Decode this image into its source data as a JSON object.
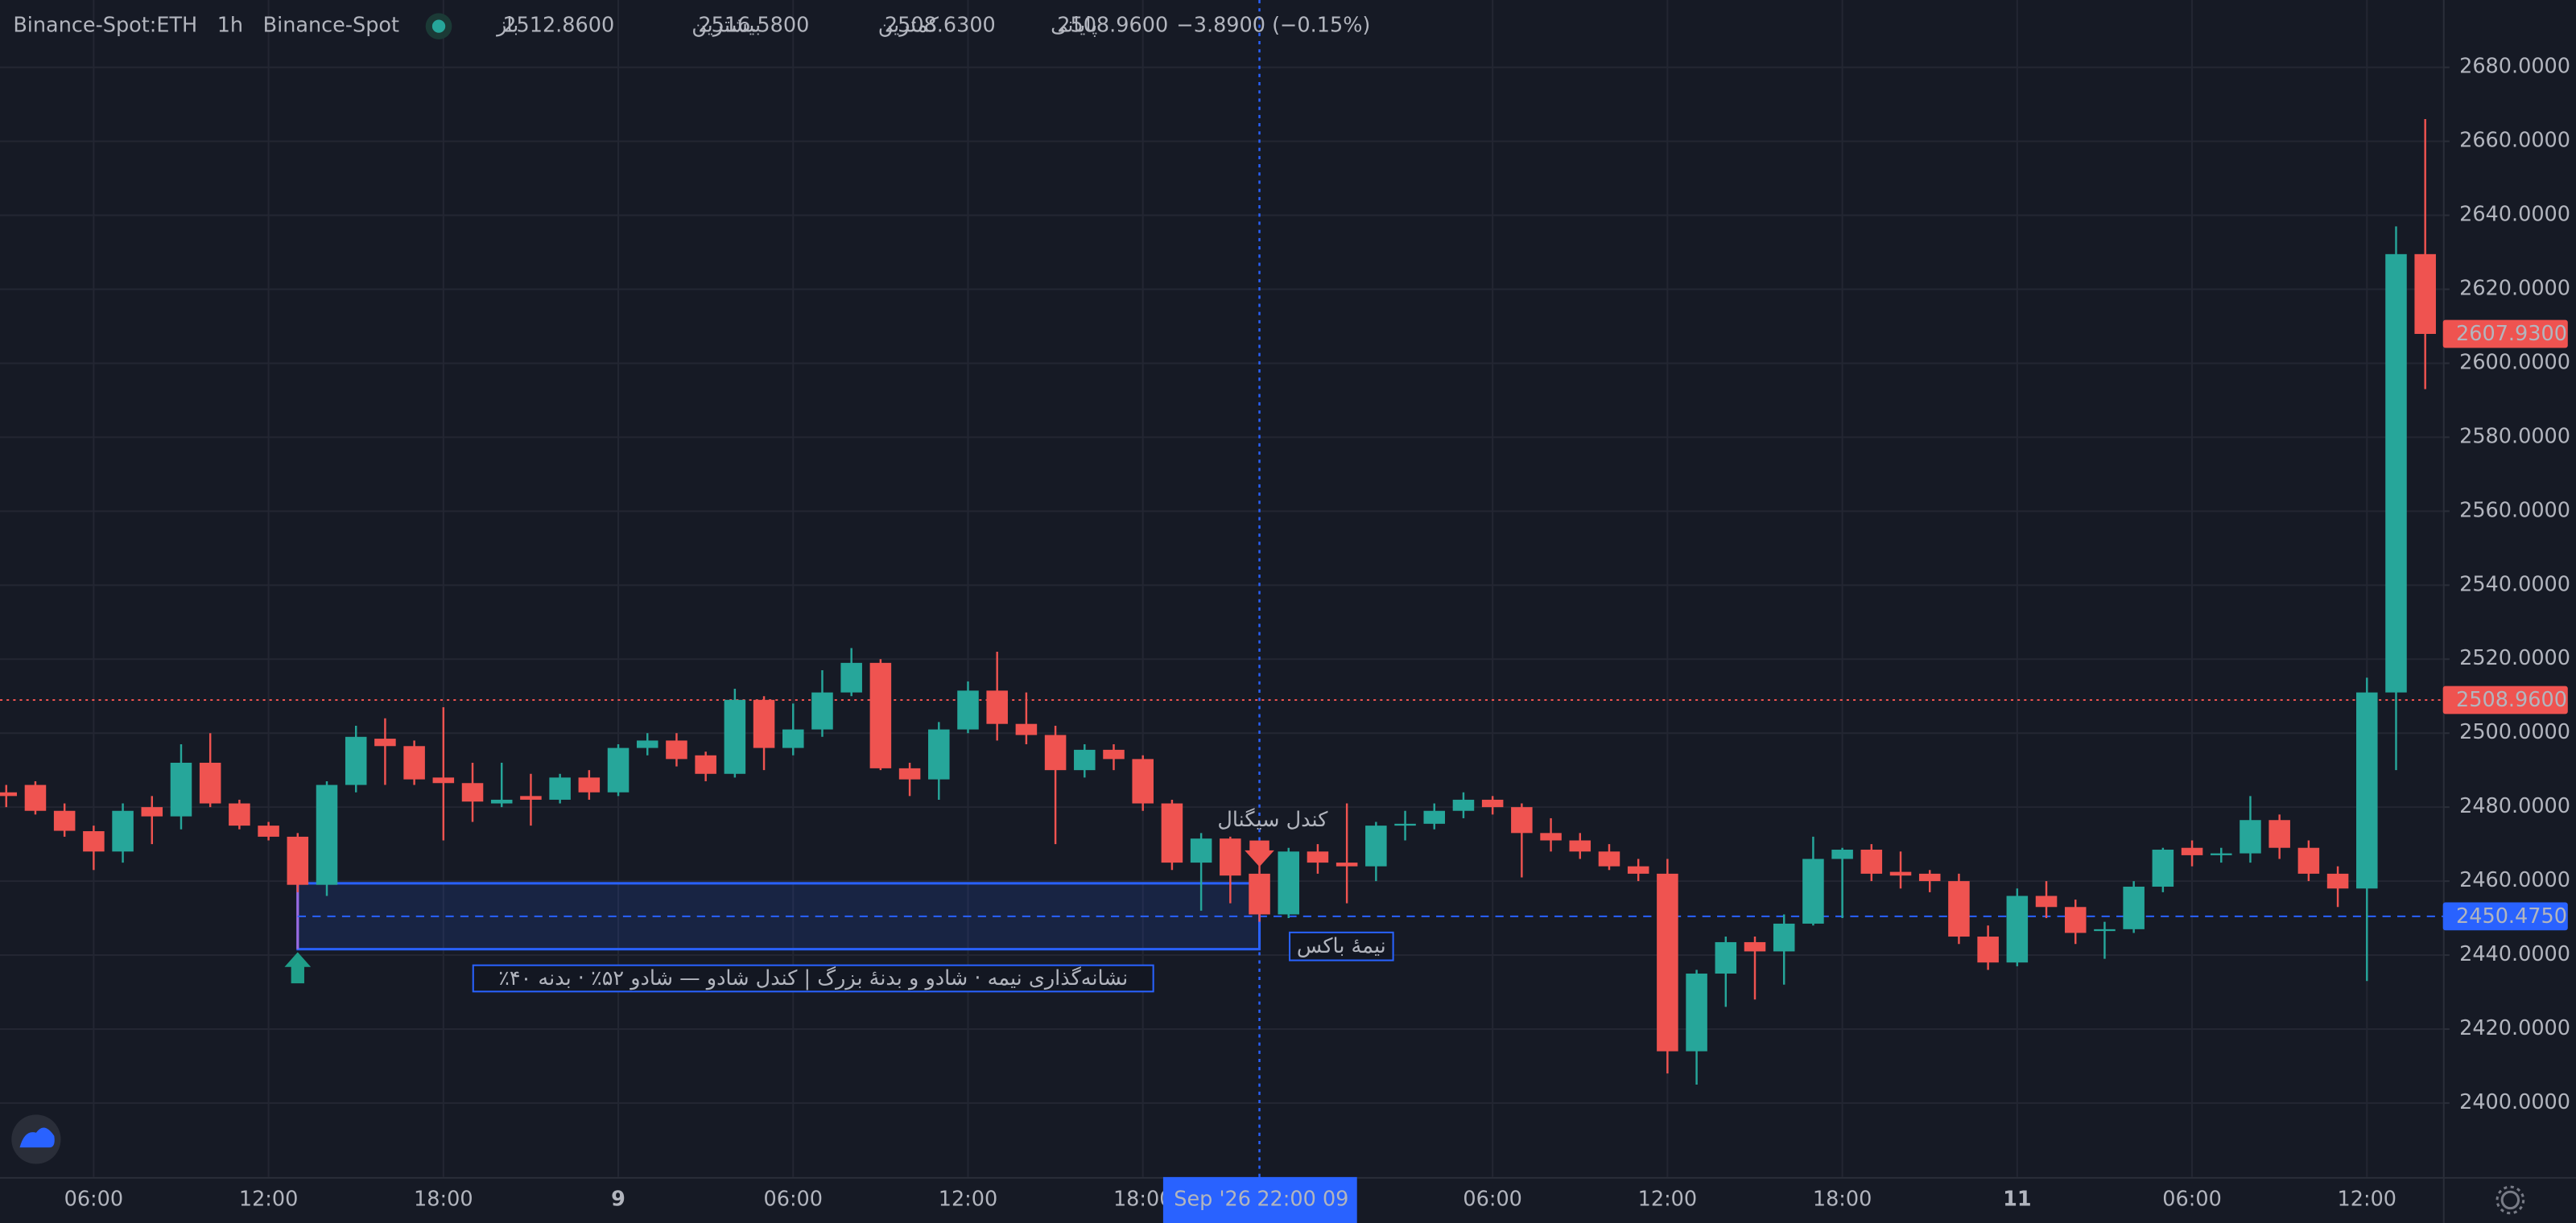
{
  "chart_data": {
    "type": "candlestick",
    "symbol": "Binance-Spot:ETH",
    "interval": "1h",
    "exchange": "Binance-Spot",
    "legend": [
      {
        "label": "باز",
        "value": "2512.8600"
      },
      {
        "label": "بیشترین",
        "value": "2516.5800"
      },
      {
        "label": "کمترین",
        "value": "2508.6300"
      },
      {
        "label": "پایانی",
        "value": "2508.9600"
      }
    ],
    "change": "−3.8900 (−0.15%)",
    "categories": [
      null,
      null,
      null,
      "06:00",
      null,
      null,
      null,
      null,
      null,
      "12:00",
      null,
      null,
      null,
      null,
      null,
      "18:00",
      null,
      null,
      null,
      null,
      null,
      "9",
      null,
      null,
      null,
      null,
      null,
      "06:00",
      null,
      null,
      null,
      null,
      null,
      "12:00",
      null,
      null,
      null,
      null,
      null,
      "18:00",
      null,
      null,
      null,
      null,
      null,
      null,
      null,
      null,
      null,
      null,
      null,
      "06:00",
      null,
      null,
      null,
      null,
      null,
      "12:00",
      null,
      null,
      null,
      null,
      null,
      "18:00",
      null,
      null,
      null,
      null,
      null,
      "11",
      null,
      null,
      null,
      null,
      null,
      "06:00",
      null,
      null,
      null,
      null,
      null,
      "12:00",
      null,
      null
    ],
    "open": [
      2484,
      2486,
      2479,
      2473.5,
      2468,
      2480,
      2477.5,
      2492,
      2481,
      2475,
      2472,
      2459,
      2486,
      2498.5,
      2496.5,
      2488,
      2486.5,
      2481,
      2483,
      2482,
      2488,
      2484,
      2496,
      2498,
      2494,
      2489,
      2509,
      2496,
      2501,
      2511,
      2519,
      2490.5,
      2487.5,
      2501,
      2511.5,
      2502.5,
      2499.5,
      2490,
      2495.5,
      2493,
      2481,
      2465,
      2471.5,
      2462,
      2451,
      2468,
      2465,
      2464,
      2475,
      2475.5,
      2479,
      2482,
      2480,
      2473,
      2471,
      2468,
      2464,
      2462,
      2414,
      2435,
      2443.5,
      2441,
      2448.5,
      2466,
      2468.5,
      2462.5,
      2462,
      2460,
      2445,
      2438,
      2456,
      2453,
      2446.5,
      2447,
      2458.5,
      2469,
      2467,
      2467.5,
      2476.5,
      2469,
      2462,
      2458,
      2511,
      2629.5
    ],
    "high": [
      2486,
      2487,
      2481,
      2475,
      2481,
      2483,
      2497,
      2500,
      2482,
      2476,
      2473,
      2487,
      2502,
      2504,
      2498,
      2507,
      2492,
      2492,
      2489,
      2489,
      2490,
      2497,
      2500,
      2500,
      2495,
      2512,
      2510,
      2508,
      2517,
      2523,
      2520,
      2492,
      2503,
      2514,
      2522,
      2511,
      2502,
      2497,
      2497,
      2494,
      2482,
      2473,
      2472,
      2465,
      2469,
      2470,
      2481,
      2476,
      2479,
      2481,
      2484,
      2483,
      2481,
      2477,
      2473,
      2470,
      2466,
      2466,
      2436,
      2445,
      2445,
      2451,
      2472,
      2469,
      2470,
      2468,
      2463,
      2462,
      2448,
      2458,
      2460,
      2455,
      2449,
      2460,
      2469,
      2471,
      2469,
      2483,
      2478,
      2471,
      2464,
      2515,
      2637,
      2666
    ],
    "low": [
      2480,
      2478,
      2472,
      2463,
      2465,
      2470,
      2474,
      2480,
      2474,
      2471,
      2457,
      2456,
      2484,
      2486,
      2486,
      2471,
      2476,
      2480,
      2475,
      2481,
      2482,
      2483,
      2494,
      2491,
      2487,
      2488,
      2490,
      2494,
      2499,
      2510,
      2490,
      2483,
      2482,
      2500,
      2498,
      2497,
      2470,
      2488,
      2490,
      2479,
      2463,
      2452,
      2454,
      2449,
      2450,
      2462,
      2454,
      2460,
      2471,
      2474,
      2477,
      2478,
      2461,
      2468,
      2466,
      2463,
      2460,
      2408,
      2405,
      2426,
      2428,
      2432,
      2448,
      2450,
      2460,
      2458,
      2457,
      2443,
      2436,
      2437,
      2450,
      2443,
      2439,
      2446,
      2457,
      2464,
      2465,
      2465,
      2466,
      2460,
      2453,
      2433,
      2490,
      2593
    ],
    "close": [
      2483,
      2479,
      2473.6,
      2468,
      2479,
      2477.5,
      2492,
      2481,
      2475,
      2472,
      2459,
      2486,
      2499,
      2496.5,
      2487.5,
      2486.5,
      2481.5,
      2482,
      2482,
      2488,
      2484,
      2496,
      2498,
      2493,
      2489,
      2509,
      2496,
      2501,
      2511,
      2519,
      2490.5,
      2487.5,
      2501,
      2511.5,
      2502.5,
      2499.5,
      2490,
      2495.5,
      2493,
      2481,
      2465,
      2471.5,
      2461.5,
      2451,
      2468,
      2465,
      2464,
      2475,
      2475.5,
      2479,
      2482,
      2480,
      2473,
      2471,
      2468,
      2464,
      2462,
      2414,
      2435,
      2443.5,
      2441,
      2448.5,
      2466,
      2468.5,
      2462,
      2461.5,
      2460,
      2445,
      2438,
      2456,
      2453,
      2446,
      2447,
      2458.5,
      2468.5,
      2467,
      2467.5,
      2476.5,
      2469,
      2462,
      2458,
      2511,
      2629.5,
      2607.93
    ],
    "up_color": "#26a69a",
    "down_color": "#ef5350",
    "ylim": [
      2380,
      2698.2
    ],
    "yticks": [
      {
        "value": 2400,
        "label": "2400.0000"
      },
      {
        "value": 2420,
        "label": "2420.0000"
      },
      {
        "value": 2440,
        "label": "2440.0000"
      },
      {
        "value": 2460,
        "label": "2460.0000"
      },
      {
        "value": 2480,
        "label": "2480.0000"
      },
      {
        "value": 2500,
        "label": "2500.0000"
      },
      {
        "value": 2520,
        "label": "2520.0000"
      },
      {
        "value": 2540,
        "label": "2540.0000"
      },
      {
        "value": 2560,
        "label": "2560.0000"
      },
      {
        "value": 2580,
        "label": "2580.0000"
      },
      {
        "value": 2600,
        "label": "2600.0000"
      },
      {
        "value": 2620,
        "label": "2620.0000"
      },
      {
        "value": 2640,
        "label": "2640.0000"
      },
      {
        "value": 2660,
        "label": "2660.0000"
      },
      {
        "value": 2680,
        "label": "2680.0000"
      }
    ],
    "grid": true,
    "price_labels": [
      {
        "value": 2607.93,
        "label": "2607.9300",
        "color": "#ef5350",
        "line": "none"
      },
      {
        "value": 2508.96,
        "label": "2508.9600",
        "color": "#ef5350",
        "line": "dotted"
      },
      {
        "value": 2450.475,
        "label": "2450.4750",
        "color": "#2962ff",
        "line": "dashed"
      }
    ],
    "box": {
      "top": 2459.4,
      "bottom": 2441.6,
      "color": "#2962ff"
    },
    "signal_label": "کندل سیگنال",
    "box_mid_label": "نیمهٔ باکس",
    "note": "نشانه‌گذاری نیمه · شادو و بدنهٔ بزرگ | کندل شادو — شادو ۵۲٪ · بدنه ۴۰٪",
    "crosshair_date": "Sep '26",
    "crosshair_time": "22:00 09"
  }
}
